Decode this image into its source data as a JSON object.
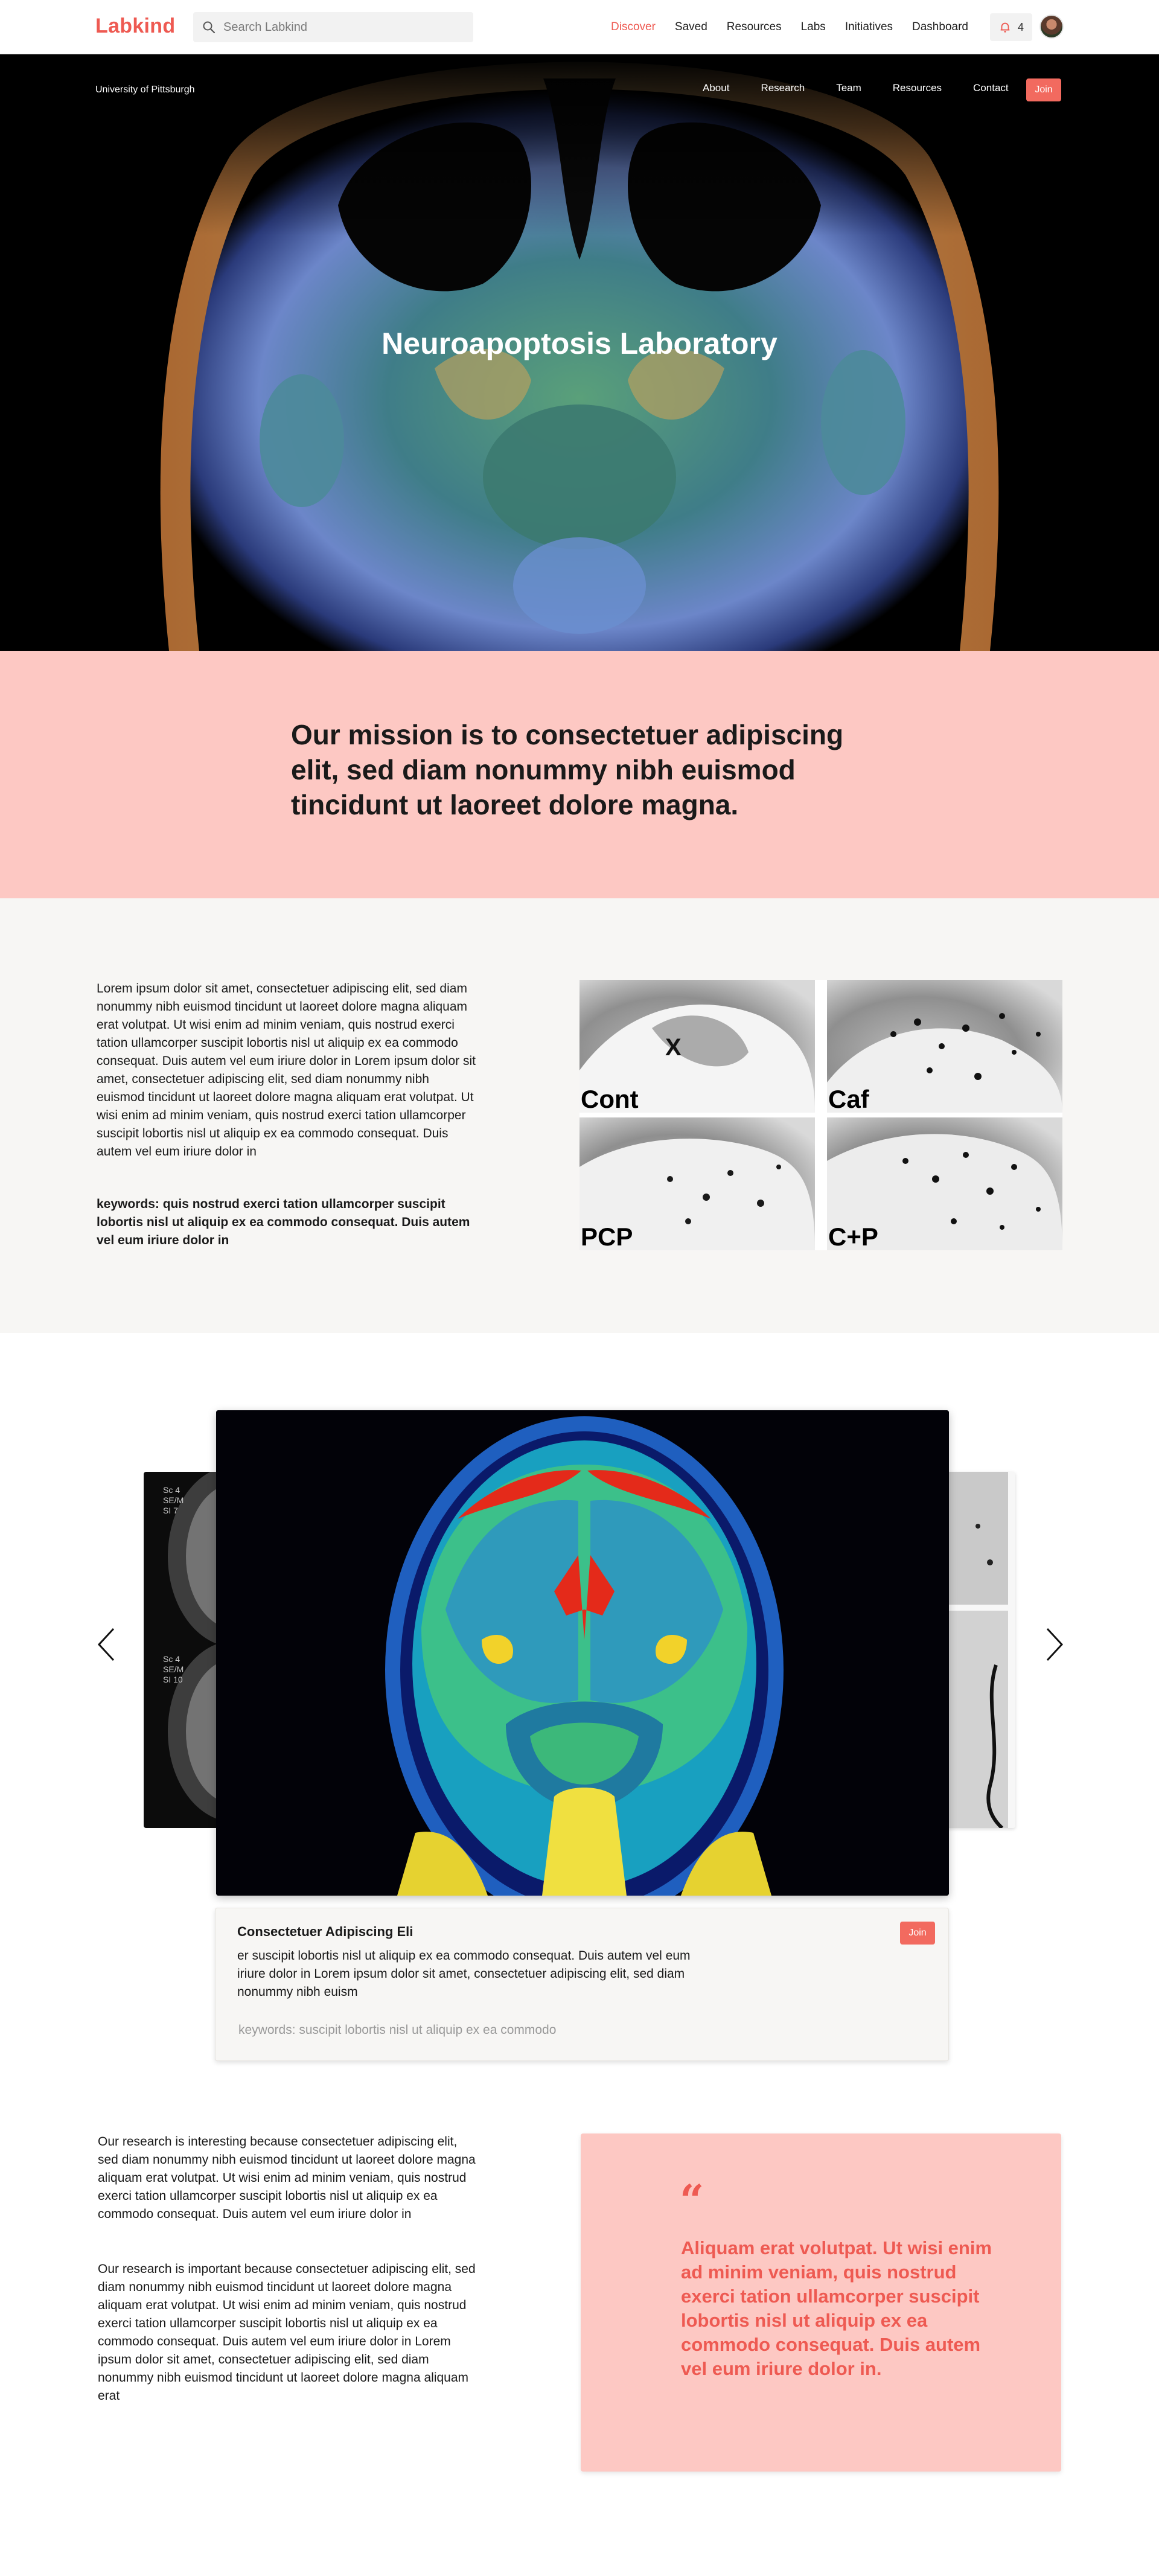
{
  "topnav": {
    "brand": "Labkind",
    "search_placeholder": "Search Labkind",
    "links": [
      "Discover",
      "Saved",
      "Resources",
      "Labs",
      "Initiatives",
      "Dashboard"
    ],
    "active_link": "Discover",
    "notification_count": "4",
    "icons": {
      "search": "search-icon",
      "notification": "bell-icon",
      "avatar": "user-avatar"
    }
  },
  "hero": {
    "university": "University of Pittsburgh",
    "links": [
      "About",
      "Research",
      "Team",
      "Resources",
      "Contact"
    ],
    "join_label": "Join",
    "title": "Neuroapoptosis Laboratory"
  },
  "mission": {
    "text": "Our mission is to consectetuer adipiscing elit, sed diam nonummy nibh euismod tincidunt ut laoreet dolore magna."
  },
  "about": {
    "body": "Lorem ipsum dolor sit amet, consectetuer adipiscing elit, sed diam nonummy nibh euismod tincidunt ut laoreet dolore magna aliquam erat volutpat. Ut wisi enim ad minim veniam, quis nostrud exerci tation ullamcorper suscipit lobortis nisl ut aliquip ex ea commodo consequat. Duis autem vel eum iriure dolor in Lorem ipsum dolor sit amet, consectetuer adipiscing elit, sed diam nonummy nibh euismod tincidunt ut laoreet dolore magna aliquam erat volutpat. Ut wisi enim ad minim veniam, quis nostrud exerci tation ullamcorper suscipit lobortis nisl ut aliquip ex ea commodo consequat. Duis autem vel eum iriure dolor in",
    "keywords": "keywords: quis nostrud exerci tation ullamcorper suscipit lobortis nisl ut aliquip ex ea commodo consequat. Duis autem vel eum iriure dolor in",
    "panels": [
      {
        "label": "Cont",
        "marker": "X"
      },
      {
        "label": "Caf"
      },
      {
        "label": "PCP"
      },
      {
        "label": "C+P"
      }
    ]
  },
  "carousel": {
    "left_labels": [
      "Sc 4\nSE/M\nSI 7",
      "Sc 4\nSE/M\nSI 10"
    ],
    "card": {
      "title": "Consectetuer Adipiscing Eli",
      "description": "er suscipit lobortis nisl ut aliquip ex ea commodo consequat. Duis autem vel eum iriure dolor in Lorem ipsum dolor sit amet, consectetuer adipiscing elit, sed diam nonummy nibh euism",
      "keywords": "keywords: suscipit lobortis nisl ut aliquip ex ea commodo",
      "join_label": "Join"
    },
    "icons": {
      "prev": "chevron-left-icon",
      "next": "chevron-right-icon"
    }
  },
  "research": {
    "p1": "Our research is interesting because consectetuer adipiscing elit, sed diam nonummy nibh euismod tincidunt ut laoreet dolore magna aliquam erat volutpat. Ut wisi enim ad minim veniam, quis nostrud exerci tation ullamcorper suscipit lobortis nisl ut aliquip ex ea commodo consequat. Duis autem vel eum iriure dolor in",
    "p2": "Our research is important because consectetuer adipiscing elit, sed diam nonummy nibh euismod tincidunt ut laoreet dolore magna aliquam erat volutpat. Ut wisi enim ad minim veniam, quis nostrud exerci tation ullamcorper suscipit lobortis nisl ut aliquip ex ea commodo consequat. Duis autem vel eum iriure dolor in Lorem ipsum dolor sit amet, consectetuer adipiscing elit, sed diam nonummy nibh euismod tincidunt ut laoreet dolore magna aliquam erat",
    "quote_mark": "“",
    "quote": "Aliquam erat volutpat. Ut wisi enim ad minim veniam, quis nostrud exerci tation ullamcorper suscipit lobortis nisl ut aliquip ex ea commodo consequat. Duis autem vel eum iriure dolor in."
  },
  "colors": {
    "accent": "#ee5a52",
    "mission_bg": "#fdc8c3",
    "section_bg": "#f7f6f4"
  }
}
